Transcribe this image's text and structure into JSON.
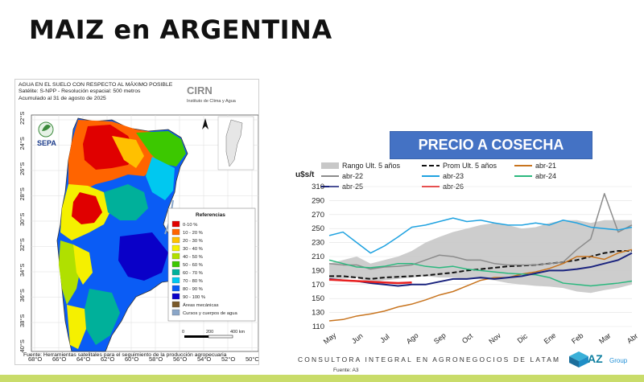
{
  "page": {
    "title": "MAIZ en ARGENTINA"
  },
  "map": {
    "header_lines": [
      "AGUA EN EL SUELO CON RESPECTO AL MÁXIMO POSIBLE",
      "Satélite: S-NPP - Resolución espacial: 500 metros",
      "Acumulado al 31 de agosto de 2025"
    ],
    "logo": "CIRN",
    "logo_sub": "Instituto de Clima y Agua",
    "sepa": "SEPA",
    "legend_title": "Referencias",
    "legend": [
      {
        "label": "0-10 %",
        "color": "#e00000"
      },
      {
        "label": "10 - 20 %",
        "color": "#ff6400"
      },
      {
        "label": "20 - 30 %",
        "color": "#ffc000"
      },
      {
        "label": "30 - 40 %",
        "color": "#f5f000"
      },
      {
        "label": "40 - 50 %",
        "color": "#b0e000"
      },
      {
        "label": "50 - 60 %",
        "color": "#3cc800"
      },
      {
        "label": "60 - 70 %",
        "color": "#00b09a"
      },
      {
        "label": "70 - 80 %",
        "color": "#00c8f0"
      },
      {
        "label": "80 - 90 %",
        "color": "#0a5cf5"
      },
      {
        "label": "90 - 100 %",
        "color": "#0a00c8"
      },
      {
        "label": "Áreas mecánicas",
        "color": "#7a5a2a"
      },
      {
        "label": "Cursos y cuerpos de agua",
        "color": "#8aa6c8"
      }
    ],
    "lat_labels": [
      "22°S",
      "24°S",
      "26°S",
      "28°S",
      "30°S",
      "32°S",
      "34°S",
      "36°S",
      "38°S",
      "40°S"
    ],
    "lon_labels": [
      "68°O",
      "66°O",
      "64°O",
      "62°O",
      "60°O",
      "58°O",
      "56°O",
      "54°O",
      "52°O",
      "50°O"
    ],
    "scale_labels": [
      "0",
      "200",
      "400 km"
    ],
    "footer": "Fuente: Herramientas satelitales para el seguimiento de la producción agropecuaria"
  },
  "chart_data": {
    "type": "line",
    "title": "PRECIO A COSECHA",
    "ylabel": "u$s/t",
    "ylim": [
      110,
      310
    ],
    "yticks": [
      110,
      130,
      150,
      170,
      190,
      210,
      230,
      250,
      270,
      290,
      310
    ],
    "categories": [
      "May",
      "Jun",
      "Jul",
      "Ago",
      "Sep",
      "Oct",
      "Nov",
      "Dic",
      "Ene",
      "Feb",
      "Mar",
      "Abr"
    ],
    "x": [
      0,
      0.5,
      1,
      1.5,
      2,
      2.5,
      3,
      3.5,
      4,
      4.5,
      5,
      5.5,
      6,
      6.5,
      7,
      7.5,
      8,
      8.5,
      9,
      9.5,
      10,
      10.5,
      11
    ],
    "band": {
      "name": "Rango Ult. 5 años",
      "color": "#c8c8c8",
      "upper": [
        200,
        205,
        210,
        200,
        205,
        210,
        218,
        230,
        238,
        245,
        250,
        255,
        258,
        255,
        250,
        252,
        258,
        262,
        262,
        258,
        262,
        262,
        262
      ],
      "lower": [
        175,
        178,
        180,
        172,
        176,
        178,
        180,
        182,
        180,
        180,
        178,
        178,
        176,
        172,
        170,
        168,
        167,
        165,
        160,
        158,
        162,
        165,
        170
      ]
    },
    "series": [
      {
        "name": "Prom Ult. 5 años",
        "color": "#111111",
        "dash": "6,3",
        "width": 2,
        "values": [
          182,
          182,
          180,
          178,
          180,
          181,
          182,
          183,
          185,
          187,
          190,
          192,
          194,
          196,
          197,
          198,
          200,
          202,
          205,
          210,
          215,
          218,
          218
        ]
      },
      {
        "name": "abr-21",
        "color": "#c8741e",
        "dash": "",
        "width": 1.5,
        "values": [
          118,
          120,
          125,
          128,
          132,
          138,
          142,
          148,
          155,
          160,
          168,
          176,
          180,
          180,
          185,
          188,
          193,
          200,
          210,
          210,
          206,
          215,
          220
        ]
      },
      {
        "name": "abr-22",
        "color": "#8c8c8c",
        "dash": "",
        "width": 1.5,
        "values": [
          200,
          198,
          198,
          192,
          195,
          196,
          198,
          205,
          212,
          210,
          205,
          205,
          200,
          198,
          198,
          198,
          200,
          202,
          220,
          235,
          300,
          245,
          255
        ]
      },
      {
        "name": "abr-23",
        "color": "#1fa2e0",
        "dash": "",
        "width": 1.5,
        "values": [
          240,
          245,
          230,
          215,
          225,
          238,
          252,
          255,
          260,
          265,
          260,
          262,
          258,
          255,
          255,
          258,
          255,
          262,
          258,
          252,
          250,
          248,
          252
        ]
      },
      {
        "name": "abr-24",
        "color": "#2bb87e",
        "dash": "",
        "width": 1.5,
        "values": [
          205,
          200,
          195,
          194,
          196,
          200,
          200,
          196,
          194,
          196,
          192,
          190,
          188,
          186,
          185,
          184,
          180,
          172,
          170,
          168,
          170,
          172,
          175
        ]
      },
      {
        "name": "abr-25",
        "color": "#1a237e",
        "dash": "",
        "width": 2,
        "values": [
          178,
          176,
          175,
          172,
          170,
          168,
          170,
          170,
          174,
          178,
          178,
          180,
          178,
          180,
          182,
          186,
          190,
          190,
          192,
          195,
          200,
          205,
          215
        ]
      },
      {
        "name": "abr-26",
        "color": "#e82020",
        "dash": "",
        "width": 2.5,
        "values": [
          177,
          176,
          175,
          174,
          173,
          172,
          173,
          null,
          null,
          null,
          null,
          null,
          null,
          null,
          null,
          null,
          null,
          null,
          null,
          null,
          null,
          null,
          null
        ]
      }
    ],
    "legend_position": "top"
  },
  "footer": {
    "consultora": "CONSULTORA INTEGRAL EN AGRONEGOCIOS DE LATAM",
    "fuente": "Fuente: A3",
    "brand": "AZ",
    "brand_sub": "Group"
  }
}
